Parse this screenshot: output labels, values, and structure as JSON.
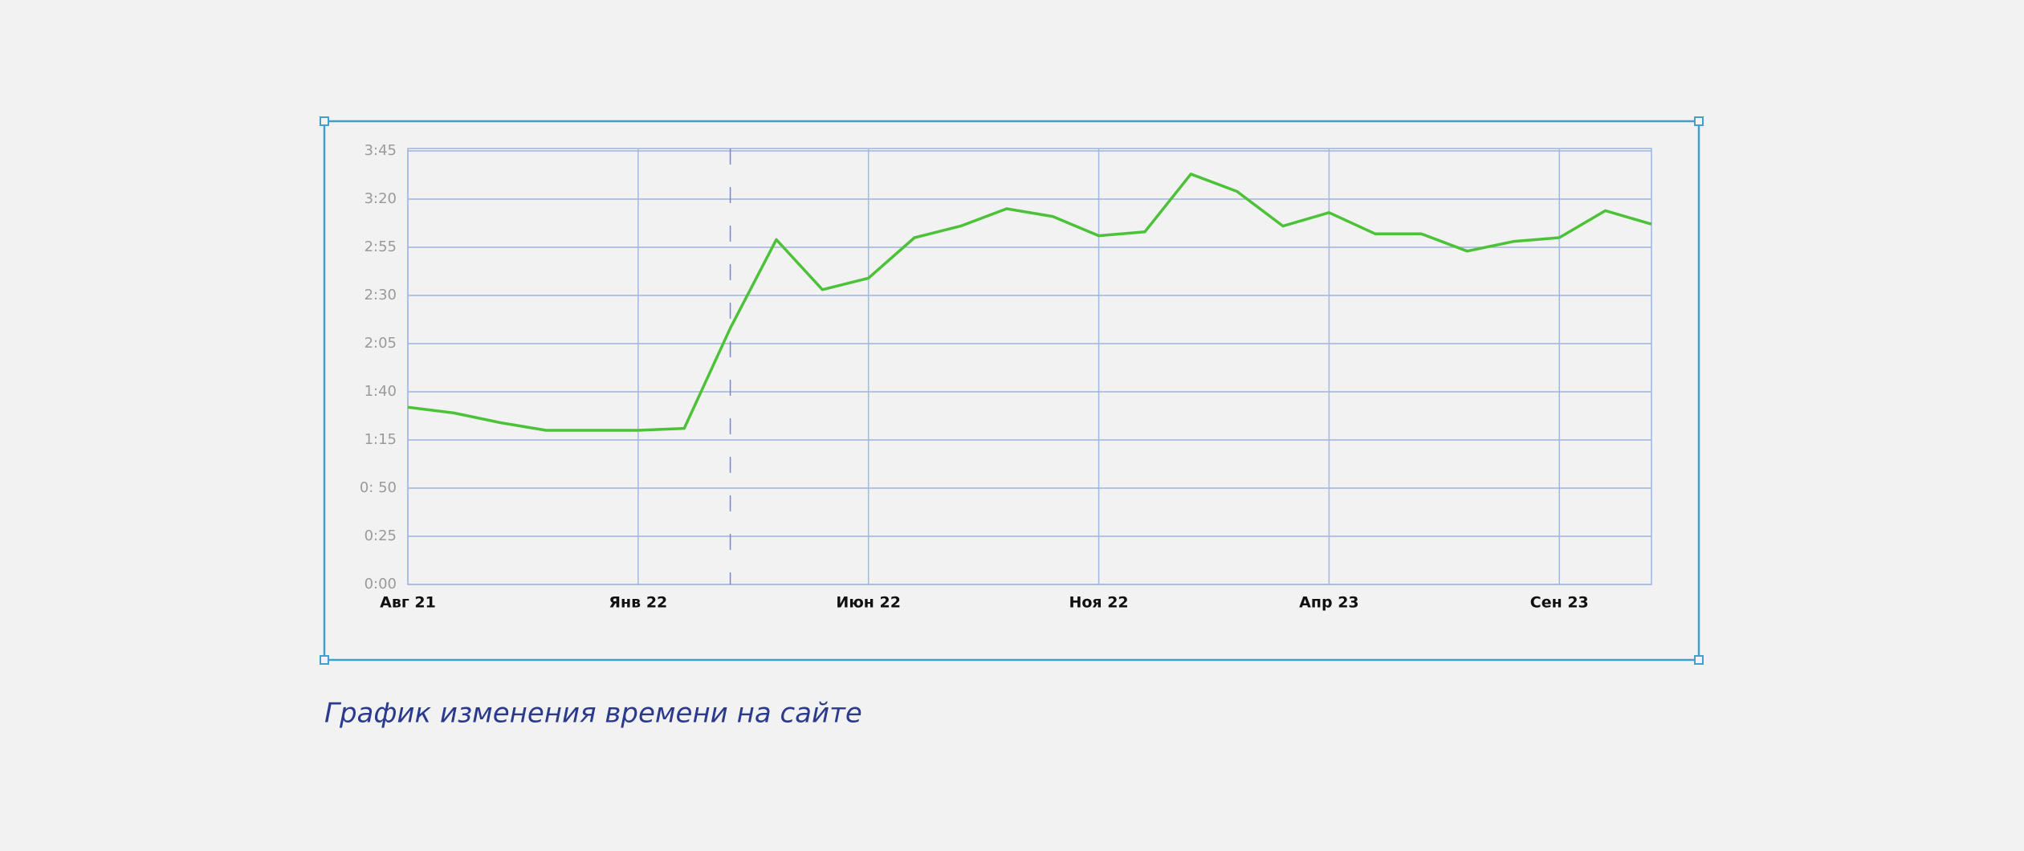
{
  "chart_data": {
    "type": "line",
    "title": "График изменения времени на сайте",
    "categories": [
      "Авг 21",
      null,
      null,
      null,
      null,
      "Янв 22",
      null,
      null,
      null,
      null,
      "Июн 22",
      null,
      null,
      null,
      null,
      "Ноя 22",
      null,
      null,
      null,
      null,
      "Апр 23",
      null,
      null,
      null,
      null,
      "Сен 23",
      null,
      null
    ],
    "series": [
      {
        "color": "#4cc238",
        "values": [
          92,
          89,
          84,
          80,
          80,
          80,
          81,
          133,
          179,
          153,
          159,
          180,
          186,
          195,
          191,
          181,
          183,
          213,
          204,
          186,
          193,
          182,
          182,
          173,
          178,
          180,
          194,
          187
        ]
      }
    ],
    "ylim": [
      0,
      225
    ],
    "yticks": [
      {
        "value": 0,
        "label": "0:00"
      },
      {
        "value": 25,
        "label": "0:25"
      },
      {
        "value": 50,
        "label": "0: 50"
      },
      {
        "value": 75,
        "label": "1:15"
      },
      {
        "value": 100,
        "label": "1:40"
      },
      {
        "value": 125,
        "label": "2:05"
      },
      {
        "value": 150,
        "label": "2:30"
      },
      {
        "value": 175,
        "label": "2:55"
      },
      {
        "value": 200,
        "label": "3:20"
      },
      {
        "value": 225,
        "label": "3:45"
      }
    ],
    "grid": true
  }
}
